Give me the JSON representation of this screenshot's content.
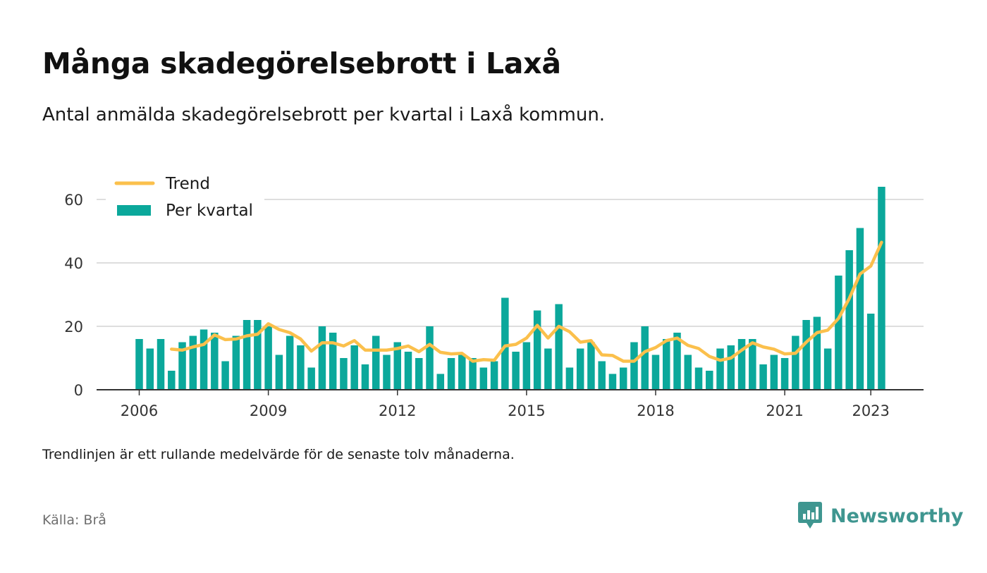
{
  "header": {
    "title": "Många skadegörelsebrott i Laxå",
    "subtitle": "Antal anmälda skadegörelsebrott per kvartal i Laxå kommun."
  },
  "footer": {
    "note": "Trendlinjen är ett rullande medelvärde för de senaste tolv månaderna.",
    "source": "Källa: Brå",
    "brand": "Newsworthy"
  },
  "colors": {
    "bars": "#0ba89b",
    "trend": "#fbc04c",
    "grid": "#dedede",
    "axis": "#333333",
    "brand": "#3f9690"
  },
  "icons": [
    "newsworthy-logo-icon"
  ],
  "chart_data": {
    "type": "bar",
    "title": "",
    "xlabel": "",
    "ylabel": "",
    "ylim": [
      0,
      70
    ],
    "yticks": [
      0,
      20,
      40,
      60
    ],
    "xticks": [
      "2006",
      "2009",
      "2012",
      "2015",
      "2018",
      "2021",
      "2023"
    ],
    "grid": true,
    "legend_position": "top-left",
    "categories": [
      "2006 Q1",
      "2006 Q2",
      "2006 Q3",
      "2006 Q4",
      "2007 Q1",
      "2007 Q2",
      "2007 Q3",
      "2007 Q4",
      "2008 Q1",
      "2008 Q2",
      "2008 Q3",
      "2008 Q4",
      "2009 Q1",
      "2009 Q2",
      "2009 Q3",
      "2009 Q4",
      "2010 Q1",
      "2010 Q2",
      "2010 Q3",
      "2010 Q4",
      "2011 Q1",
      "2011 Q2",
      "2011 Q3",
      "2011 Q4",
      "2012 Q1",
      "2012 Q2",
      "2012 Q3",
      "2012 Q4",
      "2013 Q1",
      "2013 Q2",
      "2013 Q3",
      "2013 Q4",
      "2014 Q1",
      "2014 Q2",
      "2014 Q3",
      "2014 Q4",
      "2015 Q1",
      "2015 Q2",
      "2015 Q3",
      "2015 Q4",
      "2016 Q1",
      "2016 Q2",
      "2016 Q3",
      "2016 Q4",
      "2017 Q1",
      "2017 Q2",
      "2017 Q3",
      "2017 Q4",
      "2018 Q1",
      "2018 Q2",
      "2018 Q3",
      "2018 Q4",
      "2019 Q1",
      "2019 Q2",
      "2019 Q3",
      "2019 Q4",
      "2020 Q1",
      "2020 Q2",
      "2020 Q3",
      "2020 Q4",
      "2021 Q1",
      "2021 Q2",
      "2021 Q3",
      "2021 Q4",
      "2022 Q1",
      "2022 Q2",
      "2022 Q3",
      "2022 Q4",
      "2023 Q1",
      "2023 Q2"
    ],
    "series": [
      {
        "name": "Per kvartal",
        "type": "bar",
        "values": [
          16,
          13,
          16,
          6,
          15,
          17,
          19,
          18,
          9,
          17,
          22,
          22,
          20,
          11,
          17,
          14,
          7,
          20,
          18,
          10,
          14,
          8,
          17,
          11,
          15,
          12,
          10,
          20,
          5,
          10,
          11,
          10,
          7,
          9,
          29,
          12,
          15,
          25,
          13,
          27,
          7,
          13,
          15,
          9,
          5,
          7,
          15,
          20,
          11,
          16,
          18,
          11,
          7,
          6,
          13,
          14,
          16,
          16,
          8,
          11,
          10,
          17,
          22,
          23,
          13,
          36,
          44,
          51,
          24,
          64
        ]
      },
      {
        "name": "Trend",
        "type": "line",
        "values": [
          null,
          null,
          null,
          12.8,
          12.5,
          13.5,
          14.3,
          17.3,
          15.8,
          16,
          17,
          17.5,
          20.8,
          19,
          18,
          16,
          12.2,
          14.8,
          14.8,
          13.8,
          15.5,
          12.5,
          12.5,
          12.5,
          13,
          13.8,
          12,
          14.3,
          11.8,
          11.3,
          11.5,
          9,
          9.5,
          9.3,
          13.8,
          14.3,
          16.3,
          20.3,
          16.3,
          20,
          18.3,
          15,
          15.5,
          11,
          10.8,
          9,
          9,
          12,
          13.3,
          15.5,
          16.3,
          14,
          13,
          10.5,
          9.3,
          10,
          12.5,
          14.8,
          13.5,
          12.8,
          11.3,
          11.5,
          15,
          18,
          18.8,
          22.5,
          28.8,
          36.5,
          39,
          46.5
        ]
      }
    ]
  }
}
